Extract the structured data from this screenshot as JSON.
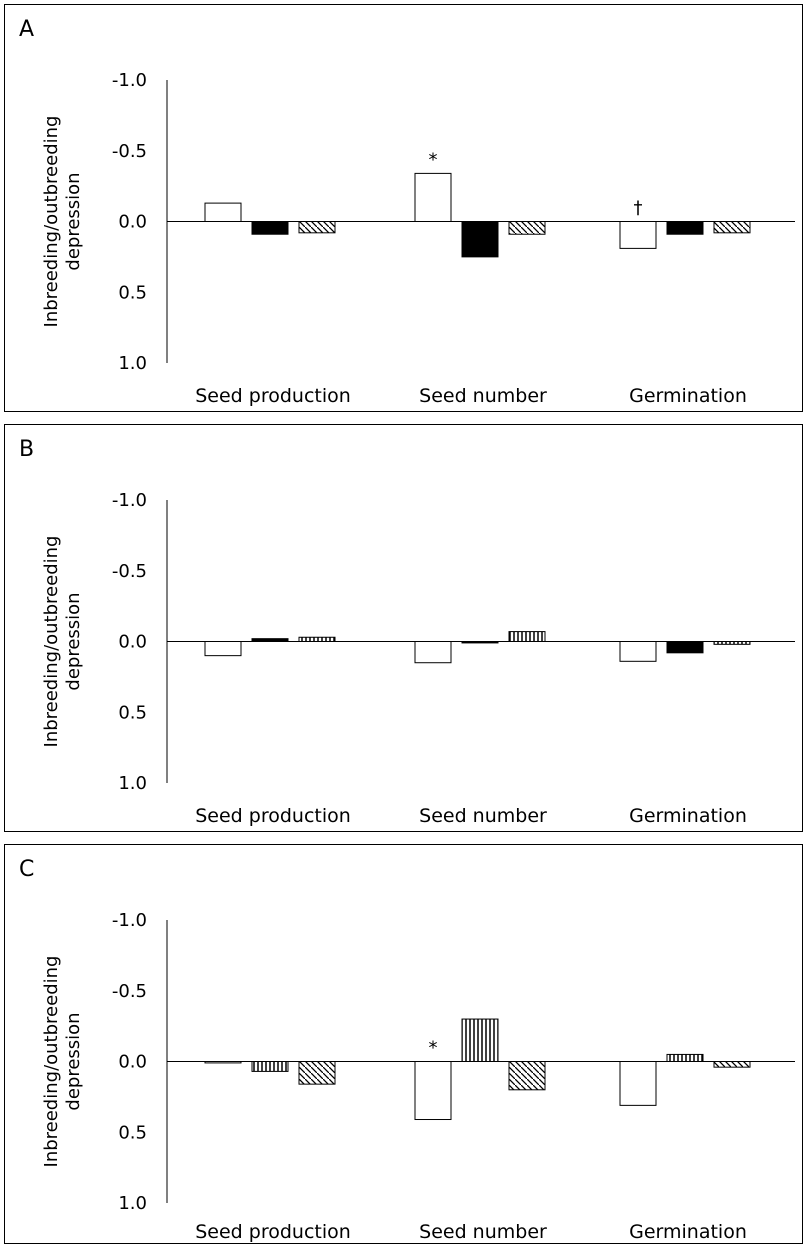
{
  "y_label_line1": "Inbreeding/outbreeding",
  "y_label_line2": "depression",
  "chart_data": [
    {
      "type": "bar",
      "panel": "A",
      "categories": [
        "Seed production",
        "Seed number",
        "Germination"
      ],
      "ylim": [
        1.0,
        -1.0
      ],
      "yticks": [
        "-1.0",
        "-0.5",
        "0.0",
        "0.5",
        "1.0"
      ],
      "series": [
        {
          "fill": "white",
          "values": [
            -0.13,
            -0.34,
            0.19
          ]
        },
        {
          "fill": "black",
          "values": [
            0.09,
            0.25,
            0.09
          ]
        },
        {
          "fill": "diagonal",
          "values": [
            0.08,
            0.09,
            0.08
          ]
        }
      ],
      "annotations": [
        {
          "category": 1,
          "series": 0,
          "text": "*"
        },
        {
          "category": 2,
          "series": 0,
          "text": "†"
        }
      ]
    },
    {
      "type": "bar",
      "panel": "B",
      "categories": [
        "Seed production",
        "Seed number",
        "Germination"
      ],
      "ylim": [
        1.0,
        -1.0
      ],
      "yticks": [
        "-1.0",
        "-0.5",
        "0.0",
        "0.5",
        "1.0"
      ],
      "series": [
        {
          "fill": "white",
          "values": [
            0.1,
            0.15,
            0.14
          ]
        },
        {
          "fill": "black",
          "values": [
            -0.02,
            0.01,
            0.08
          ]
        },
        {
          "fill": "vertical",
          "values": [
            -0.03,
            -0.07,
            0.02
          ]
        }
      ],
      "annotations": []
    },
    {
      "type": "bar",
      "panel": "C",
      "categories": [
        "Seed production",
        "Seed number",
        "Germination"
      ],
      "ylim": [
        1.0,
        -1.0
      ],
      "yticks": [
        "-1.0",
        "-0.5",
        "0.0",
        "0.5",
        "1.0"
      ],
      "series": [
        {
          "fill": "white",
          "values": [
            0.01,
            0.41,
            0.31
          ]
        },
        {
          "fill": "vertical",
          "values": [
            0.07,
            -0.3,
            -0.05
          ]
        },
        {
          "fill": "diagonal",
          "values": [
            0.16,
            0.2,
            0.04
          ]
        }
      ],
      "annotations": [
        {
          "category": 1,
          "series": 0,
          "text": "*"
        }
      ]
    }
  ]
}
